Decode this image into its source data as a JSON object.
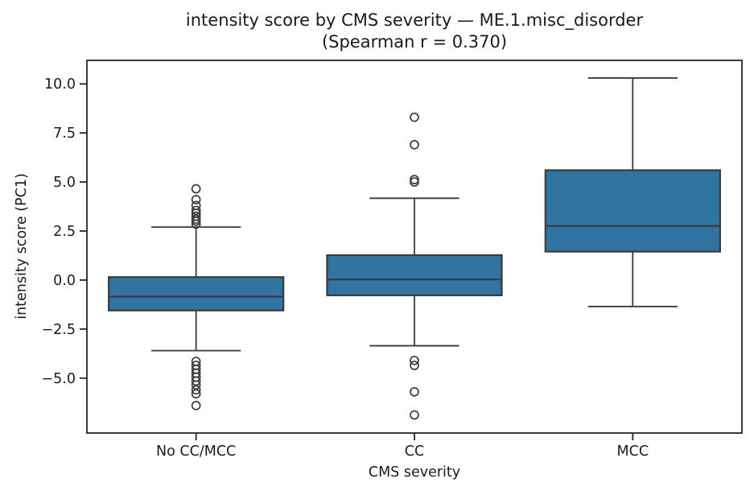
{
  "title": "intensity score by CMS severity — ME.1.misc_disorder",
  "subtitle": "(Spearman r = 0.370)",
  "chart_data": {
    "type": "boxplot",
    "title": "intensity score by CMS severity — ME.1.misc_disorder",
    "subtitle": "(Spearman r = 0.370)",
    "xlabel": "CMS severity",
    "ylabel": "intensity score (PC1)",
    "categories": [
      "No CC/MCC",
      "CC",
      "MCC"
    ],
    "ylim": [
      -7.8,
      11.2
    ],
    "yticks": [
      10.0,
      7.5,
      5.0,
      2.5,
      0.0,
      -2.5,
      -5.0
    ],
    "ytick_labels": [
      "10.0",
      "7.5",
      "5.0",
      "2.5",
      "0.0",
      "−2.5",
      "−5.0"
    ],
    "grid": false,
    "legend": "none",
    "boxes": [
      {
        "category": "No CC/MCC",
        "whisker_low": -3.6,
        "q1": -1.55,
        "median": -0.85,
        "q3": 0.15,
        "whisker_high": 2.7,
        "outliers": [
          4.65,
          4.1,
          3.8,
          3.55,
          3.4,
          3.25,
          3.1,
          3.0,
          2.85,
          -4.15,
          -4.35,
          -4.55,
          -4.75,
          -4.95,
          -5.15,
          -5.35,
          -5.6,
          -5.8,
          -6.4
        ]
      },
      {
        "category": "CC",
        "whisker_low": -3.35,
        "q1": -0.78,
        "median": 0.03,
        "q3": 1.27,
        "whisker_high": 4.17,
        "outliers": [
          8.3,
          6.9,
          5.12,
          5.0,
          -4.1,
          -4.35,
          -5.7,
          -6.88
        ]
      },
      {
        "category": "MCC",
        "whisker_low": -1.35,
        "q1": 1.45,
        "median": 2.76,
        "q3": 5.6,
        "whisker_high": 10.3,
        "outliers": []
      }
    ],
    "colors": {
      "box_fill": "#3274a1",
      "box_edge": "#3a3a3a",
      "whisker": "#3a3a3a",
      "outlier_edge": "#3a3a3a",
      "spine": "#262626",
      "text": "#1a1a1a",
      "background": "#ffffff"
    }
  }
}
